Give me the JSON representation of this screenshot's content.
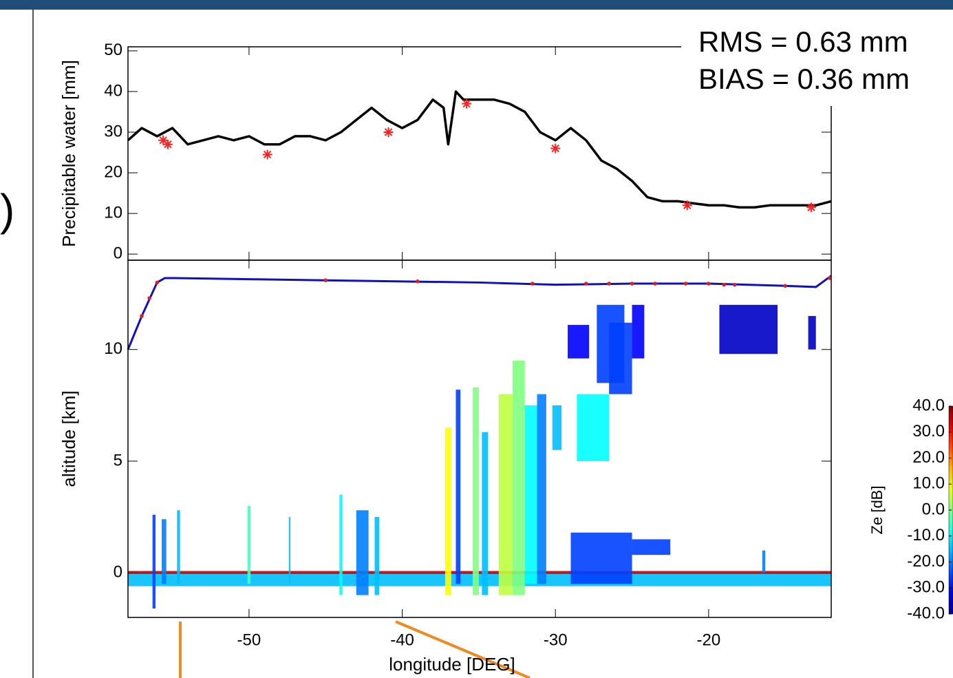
{
  "slide": {
    "bracket": ")"
  },
  "chart_data": [
    {
      "type": "line",
      "ylabel": "Precipitable water [mm]",
      "annotations": [
        "RMS = 0.63 mm",
        "BIAS = 0.36 mm"
      ],
      "xlim": [
        -57.9,
        -12
      ],
      "xticks": [
        -50,
        -40,
        -30,
        -20
      ],
      "ylim": [
        -1.5,
        51
      ],
      "yticks": [
        0,
        10,
        20,
        30,
        40,
        50
      ],
      "color": "#000000",
      "x": [
        -57.9,
        -57,
        -56,
        -55,
        -54,
        -53,
        -52,
        -51,
        -50,
        -49,
        -48,
        -47,
        -46,
        -45,
        -44,
        -43,
        -42,
        -41,
        -40,
        -39,
        -38,
        -37.3,
        -37,
        -36.5,
        -36,
        -35,
        -34,
        -33,
        -32,
        -31,
        -30,
        -29,
        -28,
        -27,
        -26,
        -25,
        -24,
        -23,
        -22,
        -21,
        -20,
        -19,
        -18,
        -17,
        -16,
        -15,
        -14,
        -13,
        -12
      ],
      "values": [
        28,
        31,
        29,
        31,
        27,
        28,
        29,
        28,
        29,
        27,
        27,
        29,
        29,
        28,
        30,
        33,
        36,
        33,
        31,
        33,
        38,
        36,
        27,
        40,
        38,
        38,
        38,
        37,
        35,
        30,
        28,
        31,
        28,
        23,
        21,
        18,
        14,
        13,
        13,
        12.5,
        12,
        12,
        11.5,
        11.5,
        12,
        12,
        12,
        12,
        13
      ],
      "matches": {
        "color": "#ff2020",
        "x": [
          -55.6,
          -55.3,
          -48.8,
          -40.9,
          -35.8,
          -30,
          -21.4,
          -13.3
        ],
        "values": [
          28,
          27,
          24.5,
          30,
          37,
          26,
          12,
          11.5
        ]
      }
    },
    {
      "type": "curtain",
      "ylabel": "altitude [km]",
      "xlabel": "longitude [DEG]",
      "xlim": [
        -57.9,
        -12
      ],
      "xticks": [
        -50,
        -40,
        -30,
        -20
      ],
      "ylim": [
        -2,
        14
      ],
      "yticks": [
        0,
        5,
        10
      ],
      "flight_track": {
        "color": "#1010c0",
        "x": [
          -57.9,
          -57,
          -56,
          -55.5,
          -55,
          -50,
          -45,
          -40,
          -35,
          -30,
          -25,
          -20,
          -15,
          -13,
          -12
        ],
        "y": [
          10,
          11.5,
          13,
          13.2,
          13.2,
          13.15,
          13.1,
          13.05,
          13,
          12.9,
          12.95,
          12.95,
          12.85,
          12.8,
          13.3
        ]
      },
      "dropsondes": {
        "color": "#e02020",
        "x": [
          -57,
          -56.5,
          -56,
          -45,
          -39,
          -31.5,
          -28,
          -26.5,
          -25,
          -23.5,
          -21.5,
          -20,
          -19,
          -18.3,
          -15,
          -12.1
        ],
        "y": [
          11.5,
          12.3,
          13,
          13.1,
          13.05,
          12.95,
          12.95,
          12.95,
          12.95,
          12.95,
          12.95,
          12.95,
          12.9,
          12.9,
          12.85,
          13.2
        ]
      },
      "cells": [
        {
          "x": [
            -57.9,
            -12
          ],
          "alt": [
            -0.6,
            0
          ],
          "ze": -15
        },
        {
          "x": [
            -57.9,
            -12
          ],
          "alt": [
            -0.05,
            0.08
          ],
          "ze": 35
        },
        {
          "x": [
            -56.3,
            -56.1
          ],
          "alt": [
            -1.6,
            2.6
          ],
          "ze": -25
        },
        {
          "x": [
            -55.7,
            -55.4
          ],
          "alt": [
            -0.5,
            2.4
          ],
          "ze": -20
        },
        {
          "x": [
            -54.7,
            -54.5
          ],
          "alt": [
            -0.5,
            2.8
          ],
          "ze": -15
        },
        {
          "x": [
            -50.1,
            -49.9
          ],
          "alt": [
            -0.5,
            3
          ],
          "ze": -5
        },
        {
          "x": [
            -47.4,
            -47.3
          ],
          "alt": [
            -0.5,
            2.5
          ],
          "ze": -15
        },
        {
          "x": [
            -44.1,
            -43.9
          ],
          "alt": [
            -1,
            3.5
          ],
          "ze": -10
        },
        {
          "x": [
            -43,
            -42.2
          ],
          "alt": [
            -1,
            2.8
          ],
          "ze": -20
        },
        {
          "x": [
            -41.8,
            -41.5
          ],
          "alt": [
            -1,
            2.5
          ],
          "ze": -15
        },
        {
          "x": [
            -37.2,
            -36.8
          ],
          "alt": [
            -1,
            6.5
          ],
          "ze": 10
        },
        {
          "x": [
            -36.5,
            -36.2
          ],
          "alt": [
            -0.5,
            8.2
          ],
          "ze": -25
        },
        {
          "x": [
            -35.4,
            -35
          ],
          "alt": [
            -1,
            8.3
          ],
          "ze": 0
        },
        {
          "x": [
            -34.8,
            -34.4
          ],
          "alt": [
            -1,
            6.3
          ],
          "ze": -15
        },
        {
          "x": [
            -33.7,
            -32.8
          ],
          "alt": [
            -1,
            8
          ],
          "ze": 5
        },
        {
          "x": [
            -32.8,
            -32
          ],
          "alt": [
            -1,
            9.5
          ],
          "ze": 0
        },
        {
          "x": [
            -32,
            -31.2
          ],
          "alt": [
            -0.5,
            7.5
          ],
          "ze": -10
        },
        {
          "x": [
            -31.2,
            -30.6
          ],
          "alt": [
            -0.5,
            8
          ],
          "ze": -20
        },
        {
          "x": [
            -30.2,
            -29.6
          ],
          "alt": [
            5.5,
            7.5
          ],
          "ze": -15
        },
        {
          "x": [
            -29.2,
            -27.8
          ],
          "alt": [
            9.6,
            11.1
          ],
          "ze": -30
        },
        {
          "x": [
            -28.6,
            -26.5
          ],
          "alt": [
            5,
            8
          ],
          "ze": -10
        },
        {
          "x": [
            -27.3,
            -25.5
          ],
          "alt": [
            8.5,
            12
          ],
          "ze": -25
        },
        {
          "x": [
            -26.5,
            -25
          ],
          "alt": [
            8,
            11.2
          ],
          "ze": -25
        },
        {
          "x": [
            -25,
            -24.2
          ],
          "alt": [
            9.6,
            12
          ],
          "ze": -30
        },
        {
          "x": [
            -19.3,
            -15.5
          ],
          "alt": [
            9.8,
            12
          ],
          "ze": -35
        },
        {
          "x": [
            -13.5,
            -13
          ],
          "alt": [
            10,
            11.5
          ],
          "ze": -35
        },
        {
          "x": [
            -29,
            -25
          ],
          "alt": [
            -0.5,
            1.8
          ],
          "ze": -25
        },
        {
          "x": [
            -25,
            -22.5
          ],
          "alt": [
            0.8,
            1.5
          ],
          "ze": -25
        },
        {
          "x": [
            -16.5,
            -16.3
          ],
          "alt": [
            0,
            1
          ],
          "ze": -20
        }
      ],
      "colorbar": {
        "label": "Ze [dB]",
        "zlim": [
          -40,
          40
        ],
        "ticks": [
          {
            "value": 40,
            "label": "40.0"
          },
          {
            "value": 30,
            "label": "30.0"
          },
          {
            "value": 20,
            "label": "20.0"
          },
          {
            "value": 10,
            "label": "10.0"
          },
          {
            "value": 0,
            "label": "0.0"
          },
          {
            "value": -10,
            "label": "-10.0"
          },
          {
            "value": -20,
            "label": "-20.0"
          },
          {
            "value": -30,
            "label": "-30.0"
          },
          {
            "value": -40,
            "label": "-40.0"
          }
        ]
      }
    }
  ]
}
